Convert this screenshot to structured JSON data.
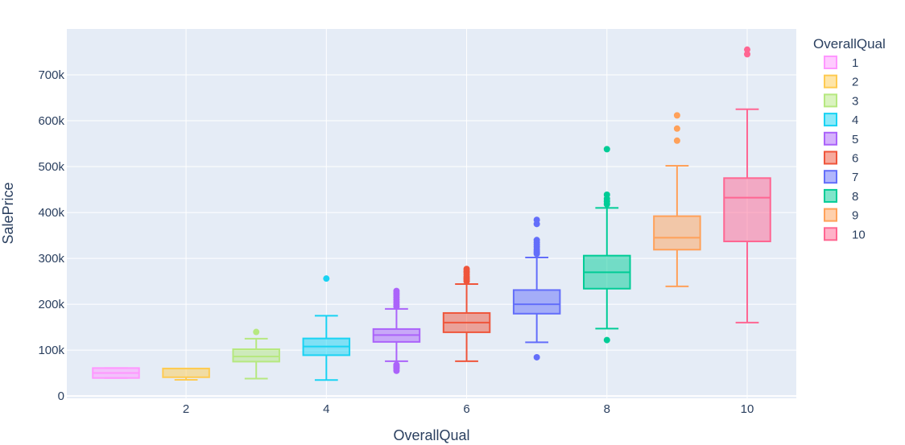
{
  "chart_data": {
    "type": "box",
    "xlabel": "OverallQual",
    "ylabel": "SalePrice",
    "xlim": [
      0.3,
      10.7
    ],
    "ylim": [
      -5000,
      800000
    ],
    "x_ticks": [
      2,
      4,
      6,
      8,
      10
    ],
    "y_ticks": [
      0,
      100000,
      200000,
      300000,
      400000,
      500000,
      600000,
      700000
    ],
    "y_tick_labels": [
      "0",
      "100k",
      "200k",
      "300k",
      "400k",
      "500k",
      "600k",
      "700k"
    ],
    "grid": true,
    "legend": {
      "title": "OverallQual",
      "position": "right"
    },
    "plot_background": "#e5ecf6",
    "series": [
      {
        "name": "1",
        "x": 1,
        "color": "#ff97ff",
        "q1": 39300,
        "median": 50150,
        "q3": 61000,
        "whisker_low": 39300,
        "whisker_high": 61000,
        "outliers": []
      },
      {
        "name": "2",
        "x": 2,
        "color": "#fecb52",
        "q1": 41000,
        "median": 60000,
        "q3": 60000,
        "whisker_low": 35311,
        "whisker_high": 60000,
        "outliers": []
      },
      {
        "name": "3",
        "x": 3,
        "color": "#b6e880",
        "q1": 75000,
        "median": 86250,
        "q3": 102000,
        "whisker_low": 37900,
        "whisker_high": 125000,
        "outliers": [
          139600
        ]
      },
      {
        "name": "4",
        "x": 4,
        "color": "#19d3f3",
        "q1": 89000,
        "median": 108000,
        "q3": 125500,
        "whisker_low": 34900,
        "whisker_high": 175000,
        "outliers": [
          256000
        ]
      },
      {
        "name": "5",
        "x": 5,
        "color": "#ab63fa",
        "q1": 118000,
        "median": 133000,
        "q3": 146000,
        "whisker_low": 76000,
        "whisker_high": 190000,
        "outliers": [
          55000,
          60000,
          62383,
          64500,
          68000,
          195000,
          200000,
          205000,
          210000,
          215000,
          220000,
          224000,
          228950
        ]
      },
      {
        "name": "6",
        "x": 6,
        "color": "#ef553b",
        "q1": 139000,
        "median": 160000,
        "q3": 181000,
        "whisker_low": 76000,
        "whisker_high": 244000,
        "outliers": [
          250000,
          254000,
          257000,
          260000,
          265000,
          270000,
          272000,
          277000
        ]
      },
      {
        "name": "7",
        "x": 7,
        "color": "#636efa",
        "q1": 179500,
        "median": 200000,
        "q3": 231000,
        "whisker_low": 117000,
        "whisker_high": 302000,
        "outliers": [
          84500,
          310000,
          313000,
          316000,
          320000,
          325000,
          330000,
          335000,
          340000,
          375000,
          383970
        ]
      },
      {
        "name": "8",
        "x": 8,
        "color": "#00cc96",
        "q1": 234000,
        "median": 269750,
        "q3": 306000,
        "whisker_low": 147000,
        "whisker_high": 410000,
        "outliers": [
          122000,
          418000,
          424000,
          430000,
          438780,
          538000
        ]
      },
      {
        "name": "9",
        "x": 9,
        "color": "#ffa15a",
        "q1": 319000,
        "median": 345000,
        "q3": 392000,
        "whisker_low": 239000,
        "whisker_high": 501837,
        "outliers": [
          556581,
          582933,
          611657
        ]
      },
      {
        "name": "10",
        "x": 10,
        "color": "#ff6692",
        "q1": 337000,
        "median": 432390,
        "q3": 475000,
        "whisker_low": 160000,
        "whisker_high": 625000,
        "outliers": [
          745000,
          755000
        ]
      }
    ]
  }
}
